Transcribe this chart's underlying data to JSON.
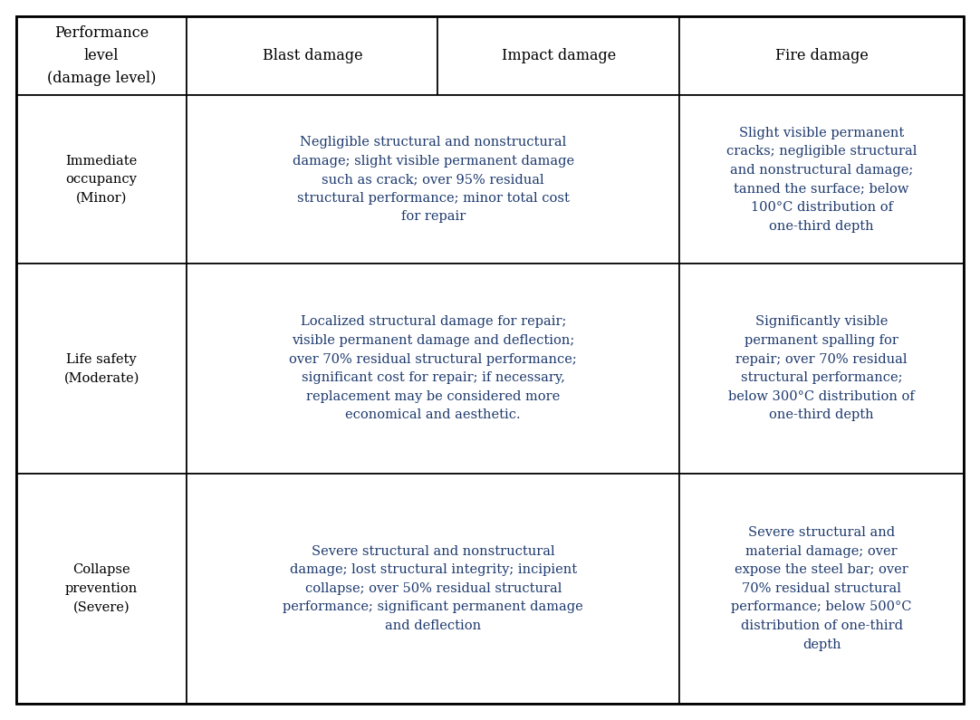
{
  "fig_width": 10.82,
  "fig_height": 7.95,
  "dpi": 100,
  "background_color": "#ffffff",
  "border_color": "#000000",
  "text_color": "#1e3a6e",
  "header_text_color": "#000000",
  "font_size": 10.5,
  "header_font_size": 11.5,
  "col0_header": "Performance\nlevel\n(damage level)",
  "col1_header": "Blast damage",
  "col2_header": "Impact damage",
  "col3_header": "Fire damage",
  "rows": [
    {
      "col0": "Immediate\noccupancy\n(Minor)",
      "col_merged": "Negligible structural and nonstructural\ndamage; slight visible permanent damage\nsuch as crack; over 95% residual\nstructural performance; minor total cost\nfor repair",
      "col3": "Slight visible permanent\ncracks; negligible structural\nand nonstructural damage;\ntanned the surface; below\n100°C distribution of\none-third depth"
    },
    {
      "col0": "Life safety\n(Moderate)",
      "col_merged": "Localized structural damage for repair;\nvisible permanent damage and deflection;\nover 70% residual structural performance;\nsignificant cost for repair; if necessary,\nreplacement may be considered more\neconomical and aesthetic.",
      "col3": "Significantly visible\npermanent spalling for\nrepair; over 70% residual\nstructural performance;\nbelow 300°C distribution of\none-third depth"
    },
    {
      "col0": "Collapse\nprevention\n(Severe)",
      "col_merged": "Severe structural and nonstructural\ndamage; lost structural integrity; incipient\ncollapse; over 50% residual structural\nperformance; significant permanent damage\nand deflection",
      "col3": "Severe structural and\nmaterial damage; over\nexpose the steel bar; over\n70% residual structural\nperformance; below 500°C\ndistribution of one-third\ndepth"
    }
  ]
}
